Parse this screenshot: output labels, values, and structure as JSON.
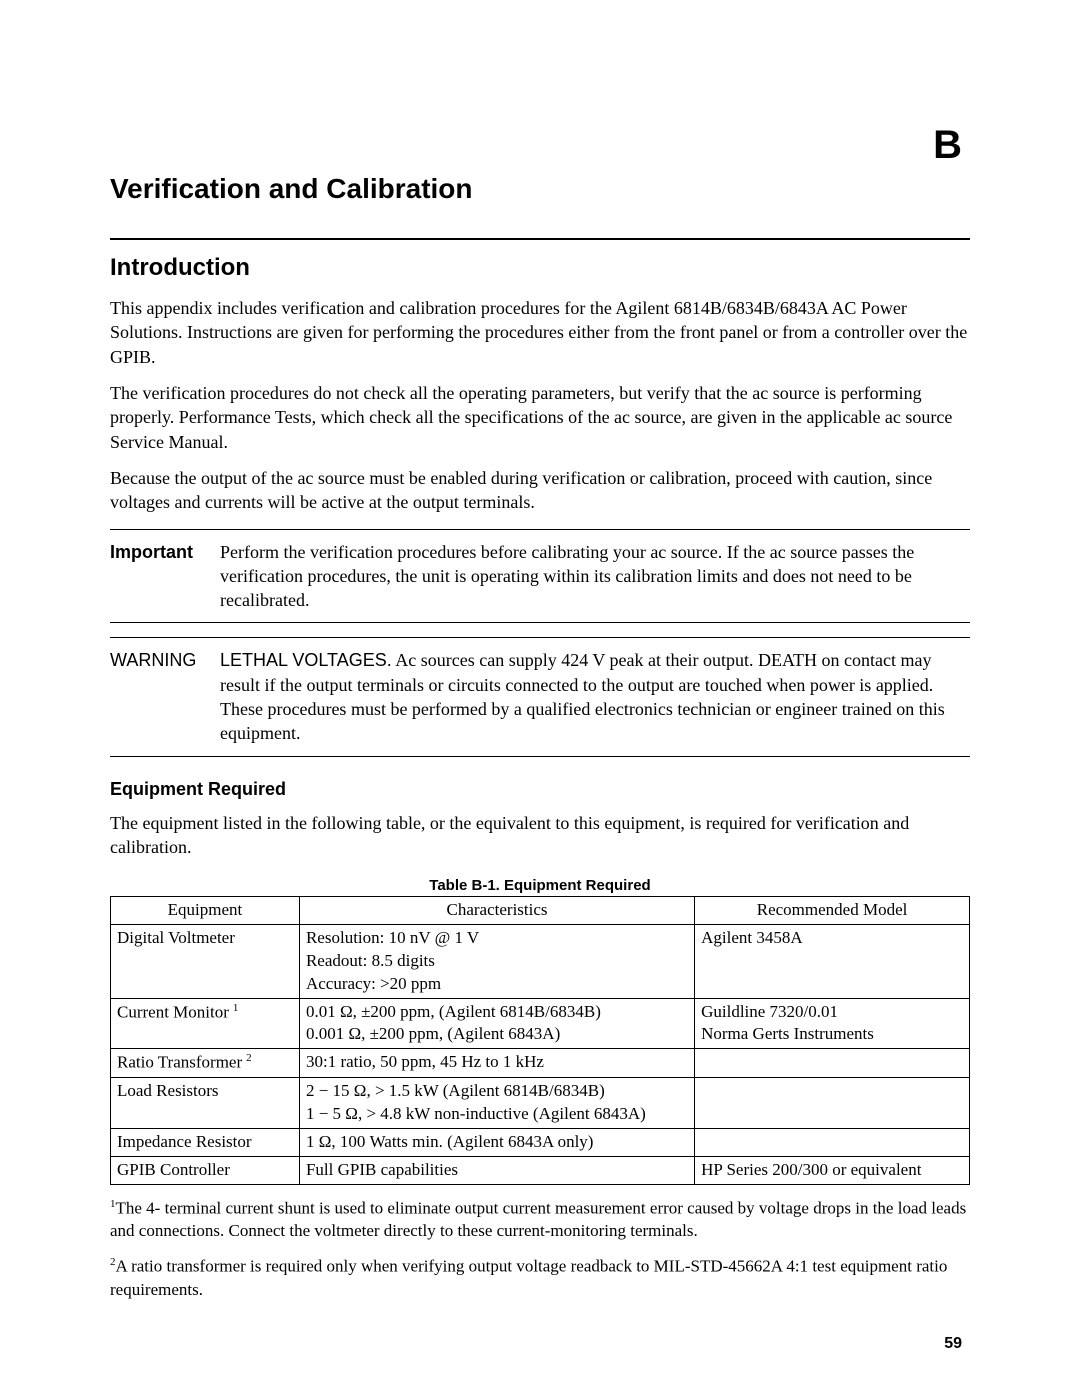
{
  "appendix_letter": "B",
  "title": "Verification and Calibration",
  "introduction": {
    "heading": "Introduction",
    "p1": "This appendix includes verification and calibration procedures for the Agilent 6814B/6834B/6843A AC Power Solutions. Instructions are given for performing the procedures either from the front panel or from a controller over the GPIB.",
    "p2": "The verification procedures do not check all the operating parameters, but verify that the ac source is performing properly. Performance Tests, which check all the specifications of the ac source, are given in the applicable ac source Service Manual.",
    "p3": "Because the output of the ac source must be enabled during verification or calibration, proceed with caution, since voltages and currents will be active at the output terminals."
  },
  "important": {
    "label": "Important",
    "text": "Perform the verification procedures before calibrating your ac source. If the ac source passes the verification procedures, the unit is operating within its calibration limits and does not need to be recalibrated."
  },
  "warning": {
    "label": "WARNING",
    "lead": "LETHAL VOLTAGES.",
    "text": " Ac sources can supply 424 V peak at  their output. DEATH on contact may result if the output terminals or circuits connected to the output are touched when power is applied. These procedures must be performed by a qualified electronics technician or engineer trained on this equipment."
  },
  "equipment": {
    "heading": "Equipment Required",
    "intro": "The equipment listed in the following table, or the equivalent to this equipment, is required for verification and calibration.",
    "table_caption": "Table B-1. Equipment Required",
    "columns": [
      "Equipment",
      "Characteristics",
      "Recommended Model"
    ],
    "rows": [
      {
        "equipment": "Digital Voltmeter",
        "sup": "",
        "characteristics": "Resolution: 10 nV @ 1 V\nReadout: 8.5 digits\nAccuracy: >20 ppm",
        "model": "Agilent 3458A"
      },
      {
        "equipment": "Current Monitor",
        "sup": "1",
        "characteristics": "0.01 Ω, ±200 ppm, (Agilent 6814B/6834B)\n0.001 Ω, ±200 ppm, (Agilent 6843A)",
        "model": "Guildline 7320/0.01\nNorma Gerts Instruments"
      },
      {
        "equipment": "Ratio Transformer",
        "sup": "2",
        "characteristics": "30:1 ratio, 50 ppm, 45 Hz  to 1 kHz",
        "model": ""
      },
      {
        "equipment": "Load Resistors",
        "sup": "",
        "characteristics": "2 − 15 Ω, > 1.5 kW (Agilent 6814B/6834B)\n1 − 5 Ω, > 4.8 kW non-inductive (Agilent 6843A)",
        "model": ""
      },
      {
        "equipment": "Impedance Resistor",
        "sup": "",
        "characteristics": "1 Ω, 100 Watts min. (Agilent 6843A only)",
        "model": ""
      },
      {
        "equipment": "GPIB Controller",
        "sup": "",
        "characteristics": "Full GPIB capabilities",
        "model": "HP Series 200/300 or equivalent"
      }
    ],
    "footnote1_sup": "1",
    "footnote1": "The 4- terminal current shunt is used to eliminate output current measurement error caused by voltage drops in the load leads and connections. Connect the voltmeter directly to these current-monitoring terminals.",
    "footnote2_sup": "2",
    "footnote2": "A ratio transformer is required only  when verifying output voltage readback to MIL-STD-45662A 4:1 test equipment ratio requirements."
  },
  "page_number": "59"
}
